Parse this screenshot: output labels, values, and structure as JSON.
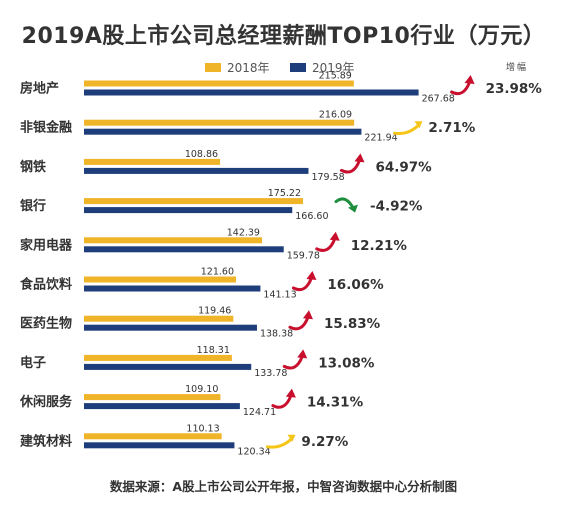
{
  "chart_data": {
    "type": "bar",
    "title": "2019A股上市公司总经理薪酬TOP10行业（万元）",
    "legend_placement": "top",
    "growth_header": "增幅",
    "categories": [
      "房地产",
      "非银金融",
      "钢铁",
      "银行",
      "家用电器",
      "食品饮料",
      "医药生物",
      "电子",
      "休闲服务",
      "建筑材料"
    ],
    "series": [
      {
        "name": "2018年",
        "color": "#F0B429",
        "values": [
          215.89,
          216.09,
          108.86,
          175.22,
          142.39,
          121.6,
          119.46,
          118.31,
          109.1,
          110.13
        ],
        "labels": [
          "215.89",
          "216.09",
          "108.86",
          "175.22",
          "142.39",
          "121.60",
          "119.46",
          "118.31",
          "109.10",
          "110.13"
        ]
      },
      {
        "name": "2019年",
        "color": "#1D3E7A",
        "values": [
          267.68,
          221.94,
          179.58,
          166.6,
          159.78,
          141.13,
          138.38,
          133.78,
          124.71,
          120.34
        ],
        "labels": [
          "267.68",
          "221.94",
          "179.58",
          "166.60",
          "159.78",
          "141.13",
          "138.38",
          "133.78",
          "124.71",
          "120.34"
        ]
      }
    ],
    "growth": [
      "23.98%",
      "2.71%",
      "64.97%",
      "-4.92%",
      "12.21%",
      "16.06%",
      "15.83%",
      "13.08%",
      "14.31%",
      "9.27%"
    ],
    "growth_values": [
      23.98,
      2.71,
      64.97,
      -4.92,
      12.21,
      16.06,
      15.83,
      13.08,
      14.31,
      9.27
    ],
    "arrow_colors": {
      "up": "#C8102E",
      "small": "#F5C518",
      "down": "#1E8E3E"
    },
    "xlim": [
      0,
      300
    ],
    "grid": false,
    "source": "数据来源：A股上市公司公开年报，中智咨询数据中心分析制图"
  }
}
